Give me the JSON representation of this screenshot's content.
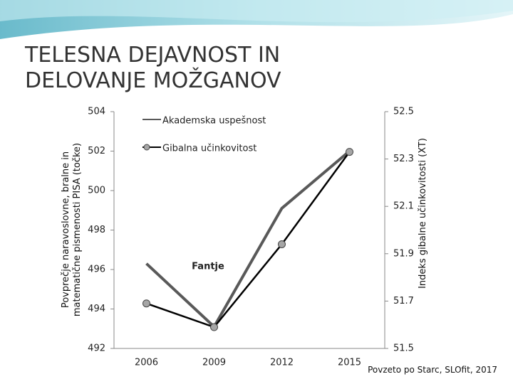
{
  "title": "TELESNA DEJAVNOST IN DELOVANJE MOŽGANOV",
  "source": "Povzeto po Starc, SLOfit, 2017",
  "chart_data": {
    "type": "line",
    "categories": [
      "2006",
      "2009",
      "2012",
      "2015"
    ],
    "y_label": "Povprečje naravoslovne, bralne in matematične pismenosti PISA (točke)",
    "y2_label": "Indeks gibalne učinkovitosti (XT)",
    "annotation": "Fantje",
    "ylim": [
      492,
      504
    ],
    "yticks": [
      492,
      494,
      496,
      498,
      500,
      502,
      504
    ],
    "y2lim": [
      51.5,
      52.5
    ],
    "y2ticks": [
      51.5,
      51.7,
      51.9,
      52.1,
      52.3,
      52.5
    ],
    "series": [
      {
        "name": "Akademska uspešnost",
        "color": "#595959",
        "values": [
          496.3,
          493.1,
          499.1,
          502.0
        ]
      },
      {
        "name": "Gibalna učinkovitost",
        "color": "#000000",
        "axis": "y2",
        "values": [
          51.69,
          51.59,
          51.94,
          52.33
        ]
      }
    ]
  }
}
